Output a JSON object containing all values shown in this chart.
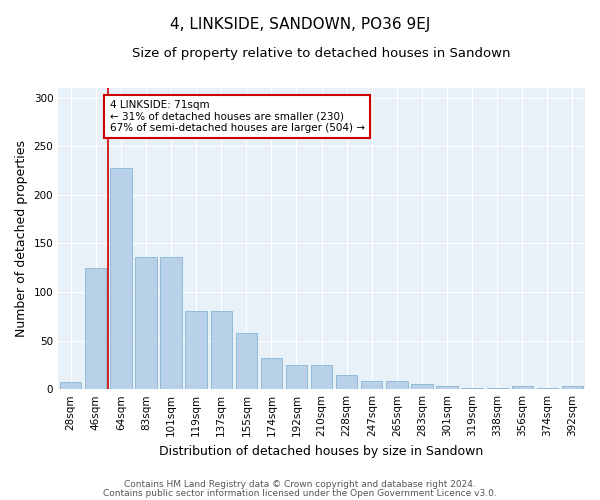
{
  "title": "4, LINKSIDE, SANDOWN, PO36 9EJ",
  "subtitle": "Size of property relative to detached houses in Sandown",
  "xlabel": "Distribution of detached houses by size in Sandown",
  "ylabel": "Number of detached properties",
  "categories": [
    "28sqm",
    "46sqm",
    "64sqm",
    "83sqm",
    "101sqm",
    "119sqm",
    "137sqm",
    "155sqm",
    "174sqm",
    "192sqm",
    "210sqm",
    "228sqm",
    "247sqm",
    "265sqm",
    "283sqm",
    "301sqm",
    "319sqm",
    "338sqm",
    "356sqm",
    "374sqm",
    "392sqm"
  ],
  "bar_heights": [
    7,
    125,
    228,
    136,
    136,
    80,
    80,
    58,
    32,
    25,
    25,
    15,
    8,
    8,
    5,
    3,
    1,
    1,
    3,
    1,
    3
  ],
  "bar_color": "#b8d0e8",
  "bar_edge_color": "#7aaed0",
  "vline_color": "#cc0000",
  "annotation_text": "4 LINKSIDE: 71sqm\n← 31% of detached houses are smaller (230)\n67% of semi-detached houses are larger (504) →",
  "annotation_box_color": "#ffffff",
  "annotation_border_color": "#cc0000",
  "ylim": [
    0,
    310
  ],
  "yticks": [
    0,
    50,
    100,
    150,
    200,
    250,
    300
  ],
  "bg_color": "#e8f0f8",
  "footer1": "Contains HM Land Registry data © Crown copyright and database right 2024.",
  "footer2": "Contains public sector information licensed under the Open Government Licence v3.0.",
  "title_fontsize": 11,
  "subtitle_fontsize": 9.5,
  "tick_fontsize": 7.5,
  "ylabel_fontsize": 9,
  "xlabel_fontsize": 9,
  "footer_fontsize": 6.5
}
